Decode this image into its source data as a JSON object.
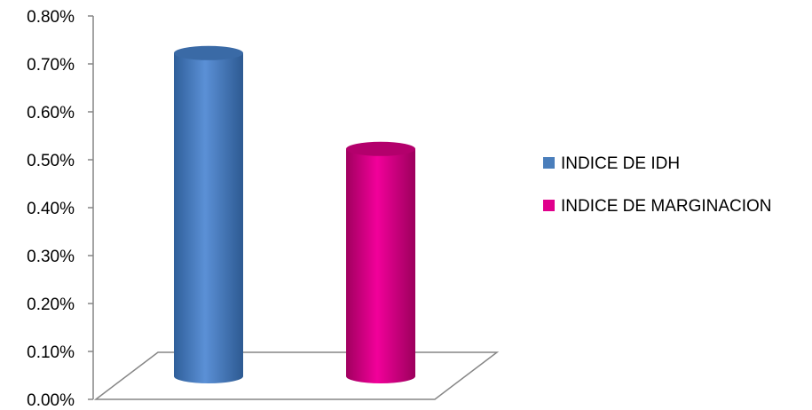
{
  "chart_data": {
    "type": "bar",
    "style": "3d-cylinder",
    "title": "",
    "xlabel": "",
    "ylabel": "",
    "ylim": [
      0,
      0.008
    ],
    "yticks": [
      "0.00%",
      "0.10%",
      "0.20%",
      "0.30%",
      "0.40%",
      "0.50%",
      "0.60%",
      "0.70%",
      "0.80%"
    ],
    "grid": false,
    "legend": "right",
    "series": [
      {
        "name": "INDICE DE IDH",
        "value": 0.0073,
        "color": "#4a7ebb"
      },
      {
        "name": "INDICE DE MARGINACION",
        "value": 0.0053,
        "color": "#e0008c"
      }
    ]
  }
}
